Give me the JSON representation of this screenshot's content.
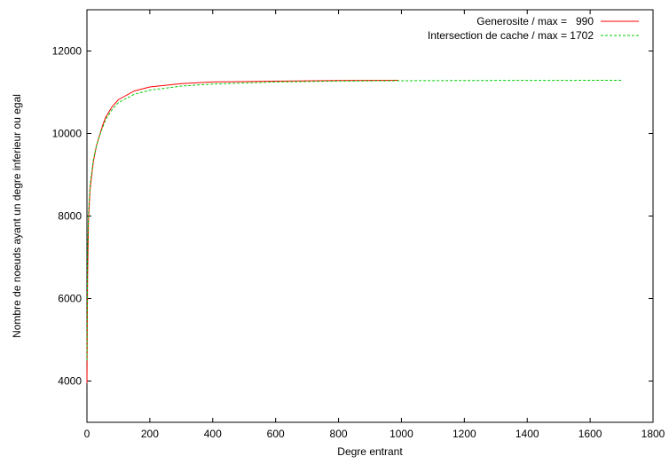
{
  "chart_data": {
    "type": "line",
    "xlabel": "Degre entrant",
    "ylabel": "Nombre de noeuds ayant un degre inferieur ou egal",
    "xlim": [
      0,
      1800
    ],
    "ylim": [
      3000,
      13000
    ],
    "x_ticks": [
      0,
      200,
      400,
      600,
      800,
      1000,
      1200,
      1400,
      1600,
      1800
    ],
    "y_ticks": [
      4000,
      6000,
      8000,
      10000,
      12000
    ],
    "grid": false,
    "legend_position": "top-right",
    "series": [
      {
        "name": "Generosite / max =   990",
        "color": "#ff0000",
        "dash": "solid",
        "points": [
          [
            0,
            3950
          ],
          [
            2,
            6500
          ],
          [
            5,
            7900
          ],
          [
            10,
            8650
          ],
          [
            20,
            9300
          ],
          [
            30,
            9700
          ],
          [
            40,
            9950
          ],
          [
            50,
            10200
          ],
          [
            60,
            10400
          ],
          [
            80,
            10650
          ],
          [
            100,
            10820
          ],
          [
            150,
            11030
          ],
          [
            200,
            11130
          ],
          [
            300,
            11210
          ],
          [
            400,
            11250
          ],
          [
            600,
            11270
          ],
          [
            800,
            11285
          ],
          [
            990,
            11290
          ]
        ]
      },
      {
        "name": "Intersection de cache / max = 1702",
        "color": "#00cc00",
        "dash": "dashed",
        "points": [
          [
            0,
            4500
          ],
          [
            2,
            7000
          ],
          [
            5,
            8100
          ],
          [
            10,
            8750
          ],
          [
            20,
            9350
          ],
          [
            30,
            9700
          ],
          [
            40,
            9950
          ],
          [
            50,
            10150
          ],
          [
            60,
            10350
          ],
          [
            80,
            10580
          ],
          [
            100,
            10750
          ],
          [
            150,
            10950
          ],
          [
            200,
            11050
          ],
          [
            300,
            11150
          ],
          [
            400,
            11200
          ],
          [
            600,
            11250
          ],
          [
            800,
            11270
          ],
          [
            1000,
            11280
          ],
          [
            1200,
            11285
          ],
          [
            1400,
            11288
          ],
          [
            1702,
            11290
          ]
        ]
      }
    ]
  }
}
